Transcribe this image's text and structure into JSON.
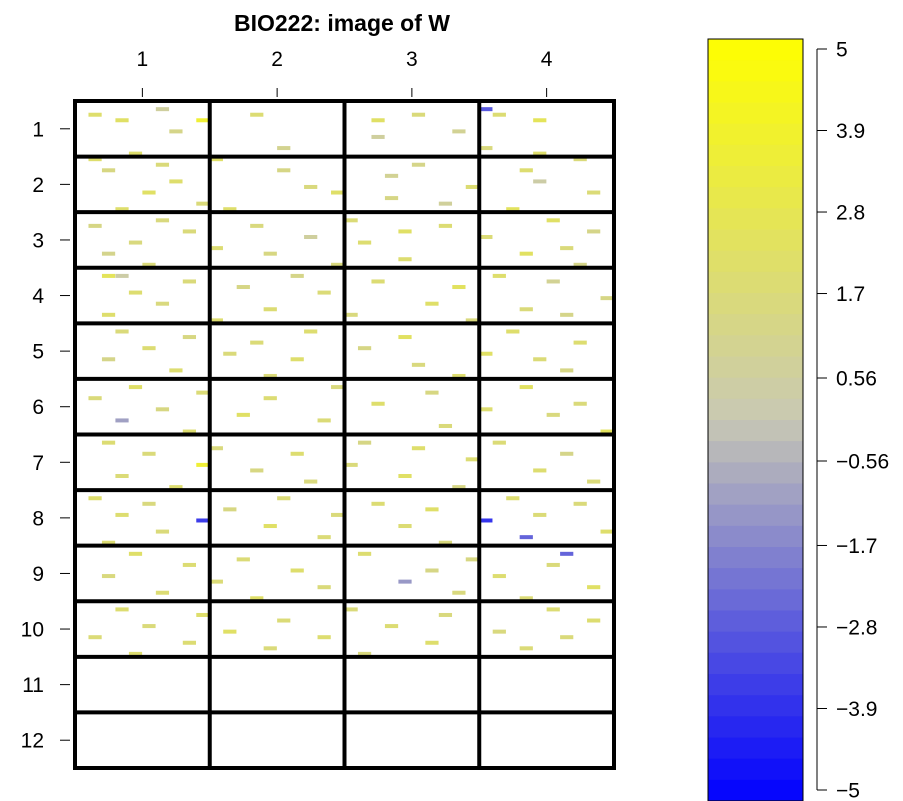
{
  "chart_data": [
    {
      "type": "heatmap",
      "title": "BIO222: image of W",
      "col_blocks": [
        "1",
        "2",
        "3",
        "4"
      ],
      "row_blocks": [
        "1",
        "2",
        "3",
        "4",
        "5",
        "6",
        "7",
        "8",
        "9",
        "10",
        "11",
        "12"
      ],
      "cols_per_block": 10,
      "rows_per_block": 10,
      "color_scale": {
        "low": "#0000ff",
        "mid": "#c8c8b4",
        "high": "#ffff00",
        "range": [
          -5,
          5
        ]
      },
      "blank_value": 0,
      "cells": [
        [
          1,
          6,
          0.6
        ],
        [
          1,
          30,
          -2.8
        ],
        [
          2,
          1,
          2
        ],
        [
          2,
          13,
          1.8
        ],
        [
          2,
          25,
          1.6
        ],
        [
          2,
          31,
          1.8
        ],
        [
          3,
          3,
          2.2
        ],
        [
          3,
          9,
          3.5
        ],
        [
          3,
          22,
          2.2
        ],
        [
          3,
          34,
          2.5
        ],
        [
          5,
          7,
          1.2
        ],
        [
          5,
          28,
          0.9
        ],
        [
          6,
          22,
          0.6
        ],
        [
          8,
          15,
          1
        ],
        [
          8,
          30,
          1.5
        ],
        [
          9,
          4,
          2
        ],
        [
          9,
          34,
          2
        ],
        [
          10,
          1,
          2
        ],
        [
          10,
          10,
          2.1
        ],
        [
          10,
          37,
          1.6
        ],
        [
          11,
          6,
          1.6
        ],
        [
          11,
          25,
          1.2
        ],
        [
          12,
          2,
          1.4
        ],
        [
          12,
          15,
          1.3
        ],
        [
          12,
          33,
          1.9
        ],
        [
          13,
          23,
          0.9
        ],
        [
          14,
          7,
          2
        ],
        [
          14,
          34,
          0.4
        ],
        [
          15,
          17,
          1.5
        ],
        [
          15,
          29,
          1.8
        ],
        [
          16,
          5,
          2.2
        ],
        [
          16,
          19,
          2.1
        ],
        [
          16,
          38,
          1.7
        ],
        [
          17,
          23,
          1.3
        ],
        [
          18,
          9,
          1.6
        ],
        [
          18,
          27,
          0.7
        ],
        [
          19,
          3,
          2
        ],
        [
          19,
          11,
          2
        ],
        [
          19,
          32,
          2.4
        ],
        [
          21,
          6,
          1.5
        ],
        [
          21,
          20,
          1.7
        ],
        [
          21,
          35,
          2.2
        ],
        [
          22,
          1,
          1.3
        ],
        [
          22,
          13,
          1.5
        ],
        [
          22,
          27,
          1.8
        ],
        [
          23,
          8,
          1.6
        ],
        [
          23,
          24,
          2.2
        ],
        [
          23,
          38,
          1.2
        ],
        [
          24,
          17,
          0.6
        ],
        [
          24,
          30,
          1.7
        ],
        [
          25,
          4,
          1.5
        ],
        [
          25,
          21,
          1.9
        ],
        [
          26,
          10,
          1.8
        ],
        [
          26,
          36,
          1.6
        ],
        [
          27,
          2,
          1.1
        ],
        [
          27,
          14,
          1.4
        ],
        [
          27,
          33,
          2.3
        ],
        [
          28,
          24,
          1.9
        ],
        [
          29,
          5,
          1.6
        ],
        [
          29,
          19,
          1.5
        ],
        [
          29,
          37,
          1.2
        ],
        [
          31,
          2,
          2.5
        ],
        [
          31,
          3,
          0.4
        ],
        [
          31,
          16,
          1.2
        ],
        [
          31,
          31,
          2
        ],
        [
          32,
          8,
          1.6
        ],
        [
          32,
          22,
          1.8
        ],
        [
          32,
          35,
          0.9
        ],
        [
          33,
          12,
          1.3
        ],
        [
          33,
          28,
          2.4
        ],
        [
          34,
          4,
          1.9
        ],
        [
          34,
          18,
          1.7
        ],
        [
          35,
          39,
          1.3
        ],
        [
          36,
          6,
          1.5
        ],
        [
          36,
          26,
          2.1
        ],
        [
          37,
          14,
          1.8
        ],
        [
          37,
          33,
          1.6
        ],
        [
          38,
          2,
          2
        ],
        [
          38,
          20,
          1.5
        ],
        [
          38,
          36,
          1.2
        ],
        [
          39,
          10,
          1.9
        ],
        [
          39,
          29,
          1.5
        ],
        [
          41,
          3,
          1.6
        ],
        [
          41,
          17,
          1.9
        ],
        [
          41,
          32,
          2
        ],
        [
          42,
          8,
          1.4
        ],
        [
          42,
          24,
          2.3
        ],
        [
          43,
          13,
          1.7
        ],
        [
          43,
          37,
          1.9
        ],
        [
          44,
          5,
          1.8
        ],
        [
          44,
          21,
          1.3
        ],
        [
          45,
          11,
          1.6
        ],
        [
          45,
          30,
          2.2
        ],
        [
          46,
          2,
          1.2
        ],
        [
          46,
          16,
          2
        ],
        [
          46,
          34,
          1.7
        ],
        [
          47,
          25,
          1.5
        ],
        [
          48,
          7,
          1.9
        ],
        [
          48,
          36,
          1.3
        ],
        [
          49,
          14,
          1.6
        ],
        [
          49,
          28,
          1.9
        ],
        [
          51,
          4,
          2.1
        ],
        [
          51,
          19,
          1.5
        ],
        [
          51,
          33,
          2.3
        ],
        [
          52,
          9,
          1.7
        ],
        [
          52,
          26,
          1.4
        ],
        [
          53,
          1,
          1.6
        ],
        [
          53,
          14,
          1.8
        ],
        [
          54,
          22,
          2
        ],
        [
          54,
          37,
          1.6
        ],
        [
          55,
          6,
          1.4
        ],
        [
          55,
          30,
          1.9
        ],
        [
          56,
          12,
          2.2
        ],
        [
          56,
          35,
          1.5
        ],
        [
          57,
          3,
          -1
        ],
        [
          57,
          18,
          1.7
        ],
        [
          58,
          27,
          1.6
        ],
        [
          59,
          8,
          1.9
        ],
        [
          59,
          39,
          2.4
        ],
        [
          61,
          2,
          1.8
        ],
        [
          61,
          21,
          1.3
        ],
        [
          61,
          31,
          1.7
        ],
        [
          62,
          10,
          1.5
        ],
        [
          62,
          25,
          2
        ],
        [
          63,
          5,
          1.6
        ],
        [
          63,
          16,
          1.9
        ],
        [
          63,
          36,
          1.2
        ],
        [
          64,
          29,
          1.8
        ],
        [
          65,
          9,
          3.5
        ],
        [
          65,
          20,
          1.6
        ],
        [
          66,
          13,
          1.4
        ],
        [
          66,
          34,
          1.9
        ],
        [
          67,
          3,
          1.7
        ],
        [
          67,
          24,
          2.2
        ],
        [
          68,
          17,
          1.5
        ],
        [
          68,
          38,
          1.6
        ],
        [
          69,
          7,
          1.9
        ],
        [
          69,
          28,
          1.3
        ],
        [
          71,
          1,
          2
        ],
        [
          71,
          15,
          1.7
        ],
        [
          71,
          32,
          1.9
        ],
        [
          72,
          5,
          1.5
        ],
        [
          72,
          22,
          1.8
        ],
        [
          72,
          37,
          1.6
        ],
        [
          73,
          11,
          1.4
        ],
        [
          73,
          26,
          2.1
        ],
        [
          74,
          3,
          1.9
        ],
        [
          74,
          19,
          1.6
        ],
        [
          74,
          34,
          1.7
        ],
        [
          75,
          9,
          -3.5
        ],
        [
          75,
          30,
          -3.7
        ],
        [
          76,
          14,
          2.2
        ],
        [
          76,
          24,
          1.8
        ],
        [
          77,
          6,
          1.6
        ],
        [
          77,
          39,
          2
        ],
        [
          78,
          18,
          1.7
        ],
        [
          78,
          33,
          -2.5
        ],
        [
          79,
          2,
          1.8
        ],
        [
          79,
          27,
          1.5
        ],
        [
          81,
          4,
          2.1
        ],
        [
          81,
          21,
          1.9
        ],
        [
          81,
          36,
          -2.5
        ],
        [
          82,
          12,
          1.7
        ],
        [
          82,
          29,
          1.4
        ],
        [
          83,
          8,
          1.8
        ],
        [
          83,
          35,
          1.6
        ],
        [
          84,
          16,
          2
        ],
        [
          84,
          26,
          1.3
        ],
        [
          85,
          2,
          1.5
        ],
        [
          85,
          31,
          1.9
        ],
        [
          86,
          10,
          1.7
        ],
        [
          86,
          24,
          -1.2
        ],
        [
          87,
          18,
          1.6
        ],
        [
          87,
          38,
          2.2
        ],
        [
          88,
          6,
          1.8
        ],
        [
          88,
          28,
          1.5
        ],
        [
          89,
          13,
          2.1
        ],
        [
          89,
          33,
          1.7
        ],
        [
          91,
          3,
          1.9
        ],
        [
          91,
          20,
          1.6
        ],
        [
          91,
          35,
          1.8
        ],
        [
          92,
          9,
          2
        ],
        [
          92,
          27,
          1.5
        ],
        [
          93,
          15,
          1.7
        ],
        [
          93,
          38,
          1.9
        ],
        [
          94,
          5,
          1.6
        ],
        [
          94,
          23,
          1.8
        ],
        [
          95,
          11,
          2.2
        ],
        [
          95,
          31,
          1.5
        ],
        [
          96,
          1,
          1.7
        ],
        [
          96,
          18,
          1.9
        ],
        [
          96,
          36,
          1.6
        ],
        [
          97,
          8,
          1.8
        ],
        [
          97,
          26,
          2
        ],
        [
          98,
          14,
          1.6
        ],
        [
          98,
          33,
          1.7
        ],
        [
          99,
          4,
          1.9
        ],
        [
          99,
          21,
          1.5
        ]
      ]
    },
    {
      "type": "colorbar",
      "tick_labels": [
        "5",
        "3.9",
        "2.8",
        "1.7",
        "0.56",
        "−0.56",
        "−1.7",
        "−2.8",
        "−3.9",
        "−5"
      ],
      "tick_values": [
        5,
        3.9,
        2.8,
        1.7,
        0.56,
        -0.56,
        -1.7,
        -2.8,
        -3.9,
        -5
      ],
      "range": [
        -5,
        5
      ],
      "steps": 36
    }
  ]
}
